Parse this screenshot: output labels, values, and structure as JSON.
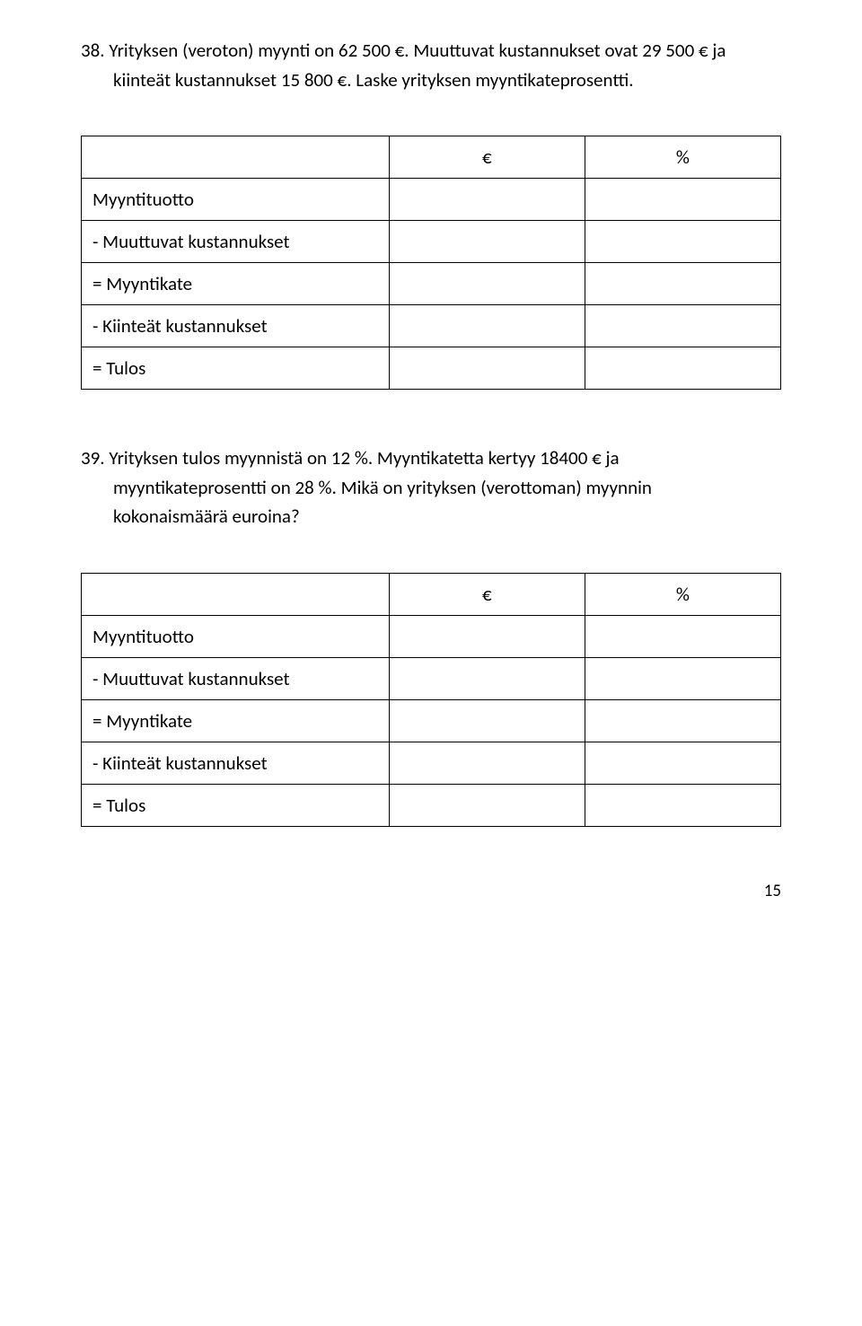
{
  "q38": {
    "number": "38.",
    "line1_after_num": "Yrityksen (veroton) myynti on 62 500 €. Muuttuvat kustannukset ovat 29 500 € ja",
    "line2": "kiinteät kustannukset 15 800 €. Laske yrityksen myyntikateprosentti."
  },
  "q39": {
    "number": "39.",
    "line1_after_num": "Yrityksen tulos myynnistä on 12 %. Myyntikatetta kertyy 18400 € ja",
    "line2": "myyntikateprosentti on 28 %. Mikä on yrityksen (verottoman) myynnin",
    "line3": "kokonaismäärä euroina?"
  },
  "table": {
    "hdr_eur": "€",
    "hdr_pct": "%",
    "rows": {
      "r1": "Myyntituotto",
      "r2": "- Muuttuvat kustannukset",
      "r3": "= Myyntikate",
      "r4": "- Kiinteät kustannukset",
      "r5": "= Tulos"
    }
  },
  "page_number": "15",
  "style": {
    "font_size_body_pt": 16,
    "text_color": "#000000",
    "border_color": "#000000",
    "background_color": "#ffffff",
    "table_col_widths_pct": [
      44,
      28,
      28
    ]
  }
}
